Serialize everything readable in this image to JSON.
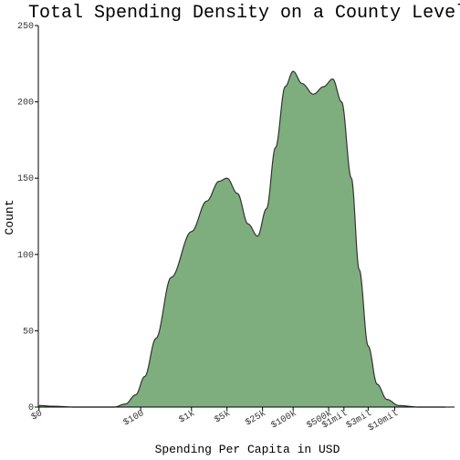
{
  "chart_data": {
    "type": "area",
    "title": "Total Spending Density on a County Level",
    "xlabel": "Spending Per Capita in USD",
    "ylabel": "Count",
    "x_scale": "log10",
    "ylim": [
      0,
      250
    ],
    "y_ticks": [
      0,
      50,
      100,
      150,
      200,
      250
    ],
    "x_ticks": [
      {
        "value": 1,
        "label": "$0"
      },
      {
        "value": 100,
        "label": "$100"
      },
      {
        "value": 1000,
        "label": "$1k"
      },
      {
        "value": 5000,
        "label": "$5k"
      },
      {
        "value": 25000,
        "label": "$25k"
      },
      {
        "value": 100000,
        "label": "$100k"
      },
      {
        "value": 500000,
        "label": "$500k"
      },
      {
        "value": 1000000,
        "label": "$1mil"
      },
      {
        "value": 3000000,
        "label": "$3mil"
      },
      {
        "value": 10000000,
        "label": "$10mil"
      }
    ],
    "series": [
      {
        "fill_color": "#7fae7e",
        "line_color": "#333333",
        "points": [
          [
            1,
            1
          ],
          [
            2,
            0.5
          ],
          [
            5,
            0
          ],
          [
            30,
            0
          ],
          [
            50,
            2
          ],
          [
            80,
            8
          ],
          [
            120,
            20
          ],
          [
            200,
            45
          ],
          [
            400,
            85
          ],
          [
            1000,
            115
          ],
          [
            2000,
            135
          ],
          [
            3500,
            148
          ],
          [
            5000,
            150
          ],
          [
            8000,
            140
          ],
          [
            13000,
            120
          ],
          [
            20000,
            112
          ],
          [
            30000,
            130
          ],
          [
            45000,
            170
          ],
          [
            70000,
            210
          ],
          [
            100000,
            220
          ],
          [
            150000,
            212
          ],
          [
            250000,
            205
          ],
          [
            400000,
            210
          ],
          [
            600000,
            215
          ],
          [
            900000,
            200
          ],
          [
            1400000,
            150
          ],
          [
            2000000,
            90
          ],
          [
            3000000,
            40
          ],
          [
            4500000,
            15
          ],
          [
            7000000,
            5
          ],
          [
            12000000,
            1
          ],
          [
            30000000,
            0
          ],
          [
            100000000,
            0
          ]
        ]
      }
    ]
  }
}
